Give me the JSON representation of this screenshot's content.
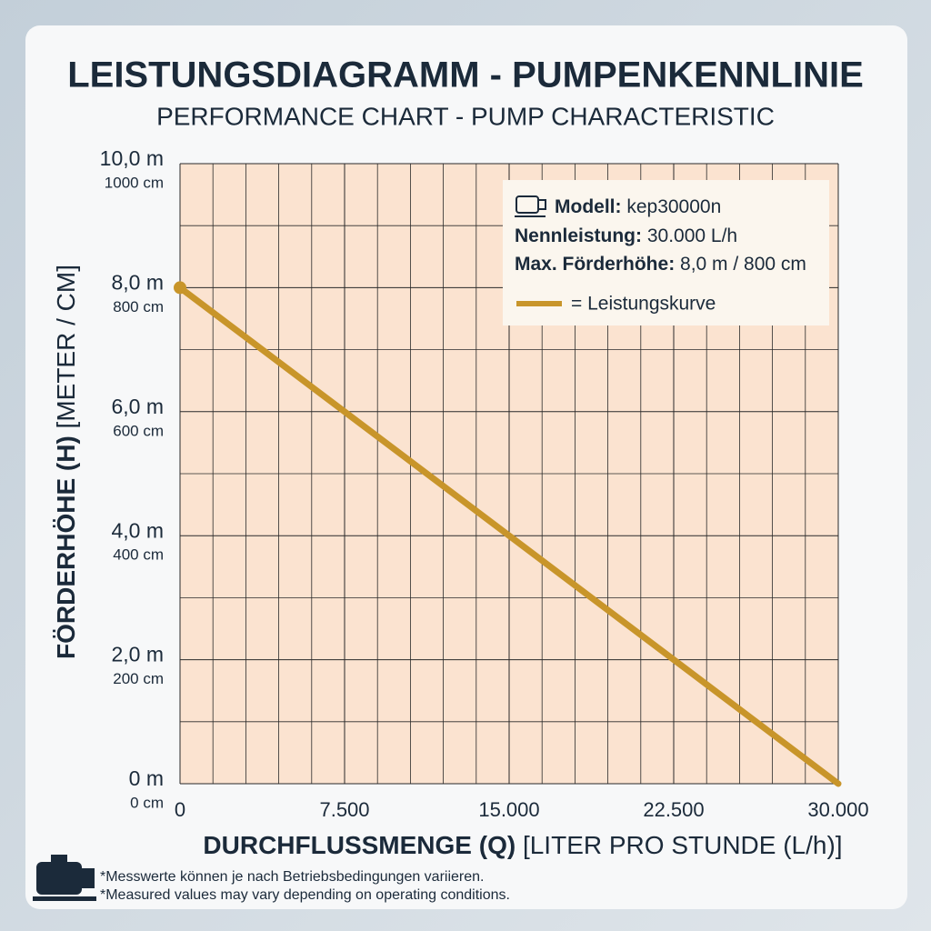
{
  "chart_data": {
    "type": "line",
    "title": "LEISTUNGSDIAGRAMM - PUMPENKENNLINIE",
    "subtitle": "PERFORMANCE CHART - PUMP CHARACTERISTIC",
    "xlabel": "DURCHFLUSSMENGE (Q)",
    "xlabel_unit": "[LITER PRO STUNDE (L/h)]",
    "ylabel": "FÖRDERHÖHE (H)",
    "ylabel_unit": "[METER / CM]",
    "x": [
      0,
      7500,
      15000,
      22500,
      30000
    ],
    "series": [
      {
        "name": "= Leistungskurve",
        "color": "#c8952a",
        "values": [
          8,
          6,
          4,
          2,
          0
        ]
      }
    ],
    "xlim": [
      0,
      30000
    ],
    "xticks": [
      0,
      {
        "value": 7500,
        "label": "7.500"
      },
      {
        "value": 15000,
        "label": "15.000"
      },
      {
        "value": 22500,
        "label": "22.500"
      },
      {
        "value": 30000,
        "label": "30.000"
      }
    ],
    "ylim": [
      0,
      10
    ],
    "yticks": [
      {
        "value": 0,
        "label": "0 m"
      },
      {
        "value": 2,
        "label": "2,0 m"
      },
      {
        "value": 4,
        "label": "4,0 m"
      },
      {
        "value": 6,
        "label": "6,0 m"
      },
      {
        "value": 8,
        "label": "8,0 m"
      },
      {
        "value": 10,
        "label": "10,0 m"
      }
    ],
    "ytick_sublabels": [
      "0 cm",
      "200 cm",
      "400 cm",
      "600 cm",
      "800 cm",
      "1000 cm"
    ],
    "grid": true,
    "legend_position": "upper right",
    "specs": [
      {
        "label": "Modell:",
        "value": "kep30000n"
      },
      {
        "label": "Nennleistung:",
        "value": "30.000 L/h"
      },
      {
        "label": "Max. Förderhöhe:",
        "value": "8,0 m / 800 cm"
      }
    ],
    "footnotes": [
      "*Messwerte können je nach Betriebsbedingungen variieren.",
      "*Measured values may vary depending on operating conditions."
    ]
  }
}
